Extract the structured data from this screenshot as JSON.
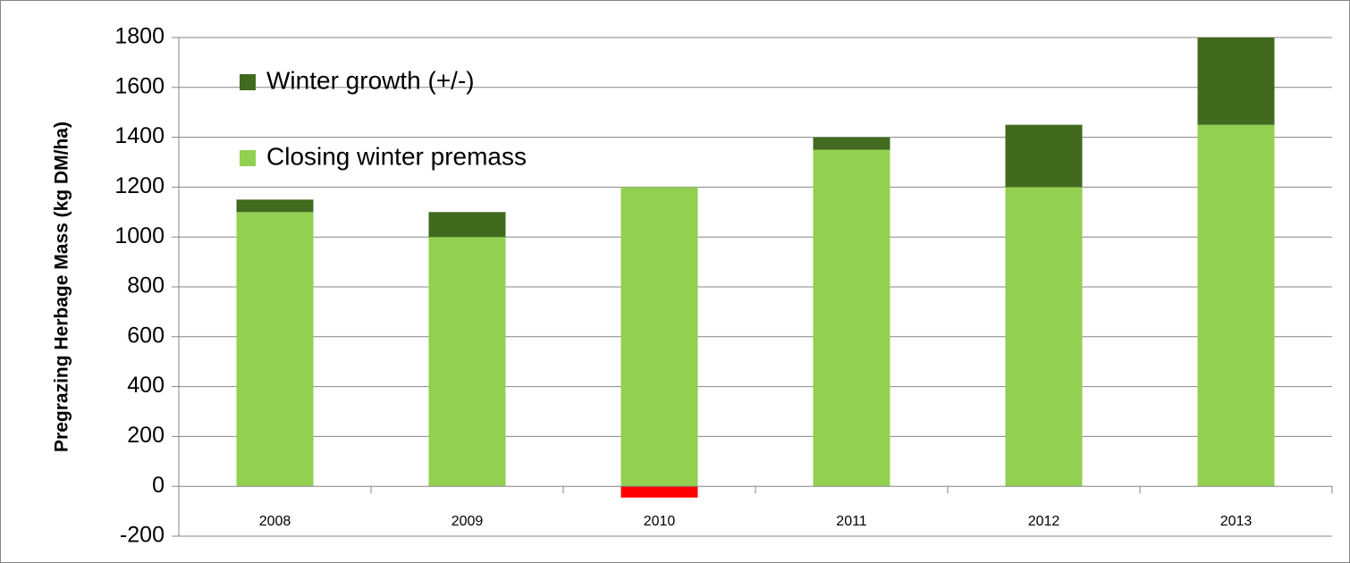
{
  "chart_data": {
    "type": "stacked_bar",
    "y_label": "Pregrazing Herbage Mass (kg DM/ha)",
    "categories": [
      "2008",
      "2009",
      "2010",
      "2011",
      "2012",
      "2013"
    ],
    "series": [
      {
        "name": "Closing winter premass",
        "color": "#92d050",
        "values": [
          1100,
          1000,
          1200,
          1350,
          1200,
          1450
        ]
      },
      {
        "name": "Winter growth (+/-)",
        "color": "#426a1f",
        "values": [
          50,
          100,
          -45,
          50,
          250,
          350
        ],
        "colors": [
          "#426a1f",
          "#426a1f",
          "#ff0000",
          "#426a1f",
          "#426a1f",
          "#426a1f"
        ]
      }
    ],
    "ylim": [
      -200,
      1800
    ],
    "yticks": [
      -200,
      0,
      200,
      400,
      600,
      800,
      1000,
      1200,
      1400,
      1600,
      1800
    ],
    "grid": true,
    "legend": "top-left"
  }
}
